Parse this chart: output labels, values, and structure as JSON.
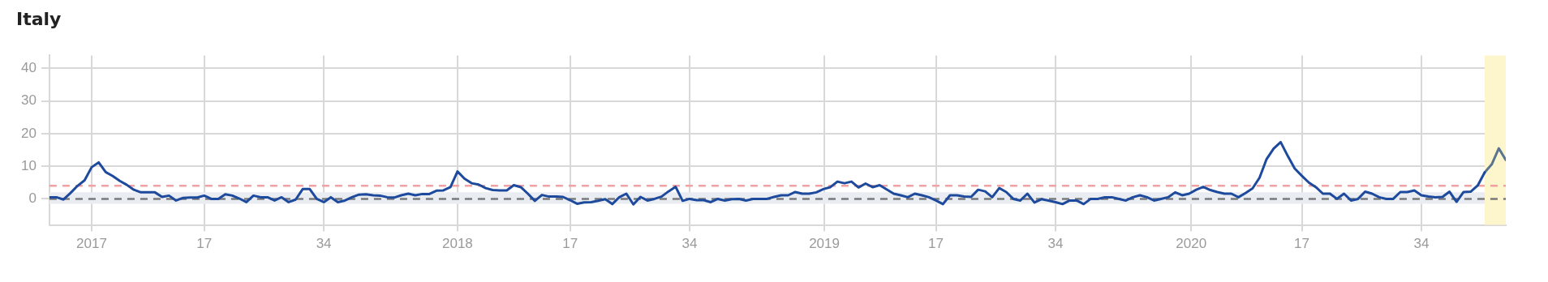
{
  "chart_data": {
    "type": "line",
    "title": "Italy",
    "xlim": [
      "2016-11-21",
      "2020-11-09"
    ],
    "ylim": [
      -8,
      44
    ],
    "xticks": [
      {
        "value": "2017-01-02",
        "label": "2017"
      },
      {
        "value": "2017-04-24",
        "label": "17"
      },
      {
        "value": "2017-08-21",
        "label": "34"
      },
      {
        "value": "2018-01-01",
        "label": "2018"
      },
      {
        "value": "2018-04-23",
        "label": "17"
      },
      {
        "value": "2018-08-20",
        "label": "34"
      },
      {
        "value": "2019-01-01",
        "label": "2019"
      },
      {
        "value": "2019-04-22",
        "label": "17"
      },
      {
        "value": "2019-08-19",
        "label": "34"
      },
      {
        "value": "2020-01-01",
        "label": "2020"
      },
      {
        "value": "2020-04-20",
        "label": "17"
      },
      {
        "value": "2020-08-17",
        "label": "34"
      }
    ],
    "yticks": [
      0,
      10,
      20,
      30,
      40
    ],
    "grid": true,
    "legend": false,
    "marker": "none",
    "line_style": "solid",
    "bands": [
      {
        "axis": "y",
        "from": -1.5,
        "to": 2,
        "color": "#e9edf1"
      },
      {
        "axis": "x",
        "from": "2020-10-19",
        "to": "2020-11-09",
        "color": "#fdf5cc"
      }
    ],
    "ref_lines": [
      {
        "axis": "y",
        "value": 4,
        "color": "#f4a0a0",
        "line_style": "dashed"
      },
      {
        "axis": "y",
        "value": 0,
        "color": "#7a7a7a",
        "line_style": "dashed"
      }
    ],
    "series": [
      {
        "color": "#1d4a9c",
        "x": [
          "2016-11-21",
          "2016-11-28",
          "2016-12-05",
          "2016-12-12",
          "2016-12-19",
          "2016-12-26",
          "2017-01-02",
          "2017-01-09",
          "2017-01-16",
          "2017-01-23",
          "2017-01-30",
          "2017-02-06",
          "2017-02-13",
          "2017-02-20",
          "2017-02-27",
          "2017-03-06",
          "2017-03-13",
          "2017-03-20",
          "2017-03-27",
          "2017-04-03",
          "2017-04-10",
          "2017-04-17",
          "2017-04-24",
          "2017-05-01",
          "2017-05-08",
          "2017-05-15",
          "2017-05-22",
          "2017-05-29",
          "2017-06-05",
          "2017-06-12",
          "2017-06-19",
          "2017-06-26",
          "2017-07-03",
          "2017-07-10",
          "2017-07-17",
          "2017-07-24",
          "2017-07-31",
          "2017-08-07",
          "2017-08-14",
          "2017-08-21",
          "2017-08-28",
          "2017-09-04",
          "2017-09-11",
          "2017-09-18",
          "2017-09-25",
          "2017-10-02",
          "2017-10-09",
          "2017-10-16",
          "2017-10-23",
          "2017-10-30",
          "2017-11-06",
          "2017-11-13",
          "2017-11-20",
          "2017-11-27",
          "2017-12-04",
          "2017-12-11",
          "2017-12-18",
          "2017-12-25",
          "2018-01-01",
          "2018-01-08",
          "2018-01-15",
          "2018-01-22",
          "2018-01-29",
          "2018-02-05",
          "2018-02-12",
          "2018-02-19",
          "2018-02-26",
          "2018-03-05",
          "2018-03-12",
          "2018-03-19",
          "2018-03-26",
          "2018-04-02",
          "2018-04-09",
          "2018-04-16",
          "2018-04-23",
          "2018-04-30",
          "2018-05-07",
          "2018-05-14",
          "2018-05-21",
          "2018-05-28",
          "2018-06-04",
          "2018-06-11",
          "2018-06-18",
          "2018-06-25",
          "2018-07-02",
          "2018-07-09",
          "2018-07-16",
          "2018-07-23",
          "2018-07-30",
          "2018-08-06",
          "2018-08-13",
          "2018-08-20",
          "2018-08-27",
          "2018-09-03",
          "2018-09-10",
          "2018-09-17",
          "2018-09-24",
          "2018-10-01",
          "2018-10-08",
          "2018-10-15",
          "2018-10-22",
          "2018-10-29",
          "2018-11-05",
          "2018-11-12",
          "2018-11-19",
          "2018-11-26",
          "2018-12-03",
          "2018-12-10",
          "2018-12-17",
          "2018-12-24",
          "2018-12-31",
          "2019-01-07",
          "2019-01-14",
          "2019-01-21",
          "2019-01-28",
          "2019-02-04",
          "2019-02-11",
          "2019-02-18",
          "2019-02-25",
          "2019-03-04",
          "2019-03-11",
          "2019-03-18",
          "2019-03-25",
          "2019-04-01",
          "2019-04-08",
          "2019-04-15",
          "2019-04-22",
          "2019-04-29",
          "2019-05-06",
          "2019-05-13",
          "2019-05-20",
          "2019-05-27",
          "2019-06-03",
          "2019-06-10",
          "2019-06-17",
          "2019-06-24",
          "2019-07-01",
          "2019-07-08",
          "2019-07-15",
          "2019-07-22",
          "2019-07-29",
          "2019-08-05",
          "2019-08-12",
          "2019-08-19",
          "2019-08-26",
          "2019-09-02",
          "2019-09-09",
          "2019-09-16",
          "2019-09-23",
          "2019-09-30",
          "2019-10-07",
          "2019-10-14",
          "2019-10-21",
          "2019-10-28",
          "2019-11-04",
          "2019-11-11",
          "2019-11-18",
          "2019-11-25",
          "2019-12-02",
          "2019-12-09",
          "2019-12-16",
          "2019-12-23",
          "2019-12-30",
          "2020-01-06",
          "2020-01-13",
          "2020-01-20",
          "2020-01-27",
          "2020-02-03",
          "2020-02-10",
          "2020-02-17",
          "2020-02-24",
          "2020-03-02",
          "2020-03-09",
          "2020-03-16",
          "2020-03-23",
          "2020-03-30",
          "2020-04-06",
          "2020-04-13",
          "2020-04-20",
          "2020-04-27",
          "2020-05-04",
          "2020-05-11",
          "2020-05-18",
          "2020-05-25",
          "2020-06-01",
          "2020-06-08",
          "2020-06-15",
          "2020-06-22",
          "2020-06-29",
          "2020-07-06",
          "2020-07-13",
          "2020-07-20",
          "2020-07-27",
          "2020-08-03",
          "2020-08-10",
          "2020-08-17",
          "2020-08-24",
          "2020-08-31",
          "2020-09-07",
          "2020-09-14",
          "2020-09-21",
          "2020-09-28",
          "2020-10-05",
          "2020-10-12",
          "2020-10-19"
        ],
        "values": [
          0.5,
          0.5,
          -0.2,
          1.8,
          4,
          5.7,
          9.7,
          11.2,
          8.2,
          7,
          5.5,
          4.3,
          2.8,
          2,
          2,
          2,
          0.6,
          1,
          -0.5,
          0.3,
          0.4,
          0.4,
          1,
          0,
          0,
          1.4,
          1,
          0.1,
          -1,
          1,
          0.5,
          0.5,
          -0.5,
          0.5,
          -1,
          -0.2,
          3,
          3,
          0,
          -1,
          0.5,
          -1,
          -0.5,
          0.5,
          1.3,
          1.4,
          1.1,
          1,
          0.5,
          0.4,
          1.1,
          1.6,
          1.1,
          1.5,
          1.5,
          2.5,
          2.6,
          3.6,
          8.4,
          6.2,
          4.8,
          4.4,
          3.3,
          2.7,
          2.6,
          2.6,
          4.2,
          3.6,
          1.6,
          -0.6,
          1.2,
          0.7,
          0.7,
          0.6,
          -0.4,
          -1.5,
          -1.1,
          -1,
          -0.6,
          -0.1,
          -1.6,
          0.5,
          1.6,
          -1.7,
          0.6,
          -0.5,
          0,
          0.7,
          2.3,
          3.7,
          -0.6,
          0,
          -0.4,
          -0.4,
          -1,
          0,
          -0.5,
          -0.1,
          0,
          -0.5,
          0,
          0,
          0,
          0.6,
          1.1,
          1.1,
          2.1,
          1.6,
          1.6,
          2,
          3,
          3.6,
          5.3,
          4.8,
          5.3,
          3.5,
          4.7,
          3.6,
          4.2,
          2.9,
          1.6,
          1.1,
          0.5,
          1.6,
          1.1,
          0.5,
          -0.5,
          -1.6,
          1.1,
          1.1,
          0.7,
          0.6,
          2.8,
          2.3,
          0.5,
          3.3,
          2.1,
          0,
          -0.5,
          1.6,
          -1.1,
          -0.1,
          -0.5,
          -1,
          -1.6,
          -0.5,
          -0.5,
          -1.6,
          0,
          0,
          0.5,
          0.5,
          0,
          -0.5,
          0.5,
          1.1,
          0.5,
          -0.5,
          0,
          0.5,
          2,
          1.1,
          1.6,
          2.8,
          3.7,
          2.7,
          2.1,
          1.6,
          1.6,
          0.5,
          1.8,
          3.2,
          6.5,
          12.2,
          15.4,
          17.4,
          13.2,
          9.3,
          7.1,
          5,
          3.6,
          1.6,
          1.6,
          0,
          1.6,
          -0.5,
          0,
          2.2,
          1.6,
          0.5,
          0,
          0,
          2.1,
          2.1,
          2.6,
          1.1,
          0.7,
          0.5,
          0.6,
          2.2,
          -0.9,
          2.1,
          2.2,
          4.1,
          8.1
        ]
      },
      {
        "color": "#5a7592",
        "x": [
          "2020-10-19",
          "2020-10-26",
          "2020-11-02",
          "2020-11-09"
        ],
        "values": [
          8.1,
          10.6,
          15.5,
          11.9
        ]
      }
    ]
  }
}
